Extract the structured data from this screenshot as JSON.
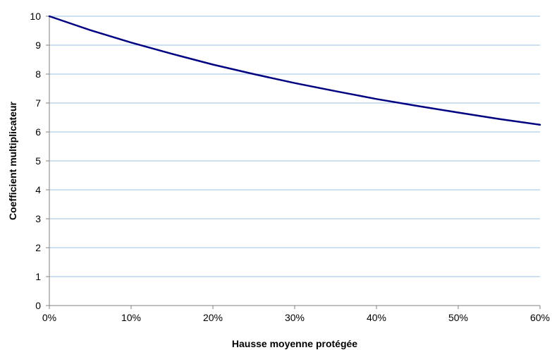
{
  "chart_data": {
    "type": "line",
    "xlabel": "Hausse moyenne protégée",
    "ylabel": "Coefficient multiplicateur",
    "xlim": [
      0,
      0.6
    ],
    "ylim": [
      0,
      10
    ],
    "x_ticks": [
      0,
      0.1,
      0.2,
      0.3,
      0.4,
      0.5,
      0.6
    ],
    "x_tick_labels": [
      "0%",
      "10%",
      "20%",
      "30%",
      "40%",
      "50%",
      "60%"
    ],
    "y_ticks": [
      0,
      1,
      2,
      3,
      4,
      5,
      6,
      7,
      8,
      9,
      10
    ],
    "y_tick_labels": [
      "0",
      "1",
      "2",
      "3",
      "4",
      "5",
      "6",
      "7",
      "8",
      "9",
      "10"
    ],
    "grid": "horizontal",
    "legend": "none",
    "series": [
      {
        "color": "#000080",
        "x": [
          0,
          0.05,
          0.1,
          0.15,
          0.2,
          0.25,
          0.3,
          0.35,
          0.4,
          0.45,
          0.5,
          0.55,
          0.6
        ],
        "values": [
          10,
          9.52,
          9.09,
          8.7,
          8.33,
          8.0,
          7.69,
          7.41,
          7.14,
          6.9,
          6.67,
          6.45,
          6.25
        ]
      }
    ]
  }
}
